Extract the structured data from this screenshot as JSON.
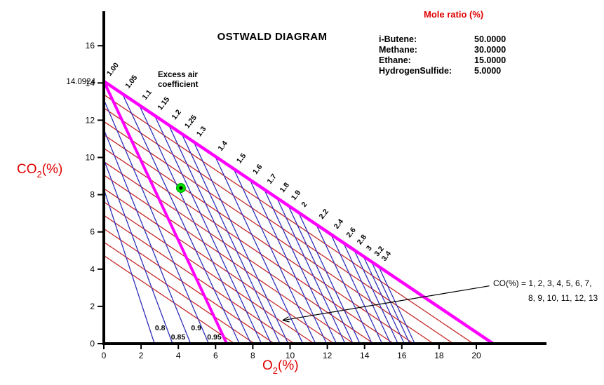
{
  "chart_data": {
    "type": "line",
    "title": "OSTWALD DIAGRAM",
    "x_axis": {
      "label_pre": "O",
      "label_sub": "2",
      "label_post": "(%)",
      "ticks": [
        0,
        2,
        4,
        6,
        8,
        10,
        12,
        14,
        16,
        18,
        20
      ],
      "range_units": [
        0,
        23.8
      ]
    },
    "y_axis": {
      "label_pre": "CO",
      "label_sub": "2",
      "label_post": "(%)",
      "ticks": [
        0,
        2,
        4,
        6,
        8,
        10,
        12,
        14,
        16
      ],
      "range_units": [
        0,
        18
      ]
    },
    "co2_max": 14.0924,
    "co2_max_label": "14.0924",
    "o2_max": 20.9,
    "lambda1_x_intercept": 6.6,
    "excess_air_annotation": {
      "line1": "Excess air",
      "line2": "coefficient"
    },
    "excess_air_lines": [
      {
        "label": "1.00",
        "value": 1
      },
      {
        "label": "1.05",
        "value": 1.05
      },
      {
        "label": "1.1",
        "value": 1.1
      },
      {
        "label": "1.15",
        "value": 1.15
      },
      {
        "label": "1.2",
        "value": 1.2
      },
      {
        "label": "1.25",
        "value": 1.25
      },
      {
        "label": "1.3",
        "value": 1.3
      },
      {
        "label": "1.4",
        "value": 1.4
      },
      {
        "label": "1.5",
        "value": 1.5
      },
      {
        "label": "1.6",
        "value": 1.6
      },
      {
        "label": "1.7",
        "value": 1.7
      },
      {
        "label": "1.8",
        "value": 1.8
      },
      {
        "label": "1.9",
        "value": 1.9
      },
      {
        "label": "2",
        "value": 2
      },
      {
        "label": "2.2",
        "value": 2.2
      },
      {
        "label": "2.4",
        "value": 2.4
      },
      {
        "label": "2.6",
        "value": 2.6
      },
      {
        "label": "2.8",
        "value": 2.8
      },
      {
        "label": "3",
        "value": 3
      },
      {
        "label": "3.2",
        "value": 3.2
      },
      {
        "label": "3.4",
        "value": 3.4
      }
    ],
    "rich_air_lines": [
      {
        "label": "0.8",
        "y0": 8.3,
        "x1": 2.72
      },
      {
        "label": "0.85",
        "y0": 9.9,
        "x1": 3.69
      },
      {
        "label": "0.9",
        "y0": 11.5,
        "x1": 4.66
      },
      {
        "label": "0.95",
        "y0": 13.1,
        "x1": 5.63
      }
    ],
    "co_lines": {
      "values": [
        1,
        2,
        3,
        4,
        5,
        6,
        7,
        8,
        9,
        10,
        11,
        12,
        13
      ],
      "y_intercept_step": 0.72
    },
    "co_annotation": {
      "line1": "CO(%) = 1, 2, 3, 4, 5, 6, 7,",
      "line2": "8, 9, 10, 11, 12, 13"
    },
    "annotation_arrow": {
      "tail": {
        "o2": 20.7,
        "co2": 3.1
      },
      "tip": {
        "o2": 9.6,
        "co2": 1.25
      }
    },
    "operating_point": {
      "o2": 4.14,
      "co2": 8.36
    },
    "colors": {
      "magenta": "#FF00FF",
      "blue": "#3030B8",
      "red": "#C52828",
      "green_point": "#00DE00",
      "green_edge": "#00A800",
      "axis": "#000000",
      "label_red": "#E00000"
    }
  },
  "legend": {
    "title": "Mole ratio (%)",
    "entries": [
      {
        "name": "i-Butene:",
        "value": "50.0000"
      },
      {
        "name": "Methane:",
        "value": "30.0000"
      },
      {
        "name": "Ethane:",
        "value": "15.0000"
      },
      {
        "name": "HydrogenSulfide:",
        "value": "5.0000"
      }
    ]
  }
}
